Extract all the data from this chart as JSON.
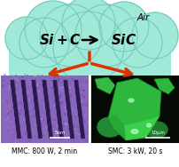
{
  "bg_color": "#ffffff",
  "cloud_color": "#a0e8d8",
  "cloud_edge_color": "#70c8b8",
  "air_text": "Air",
  "caption_left": "MMC: 800 W, 2 min",
  "caption_right": "SMC: 3 kW, 20 s",
  "scale_left": "5nm",
  "scale_right": "10μm",
  "arrow_color": "#dd3300",
  "left_bg": "#8866bb",
  "left_fin_dark": "#221144",
  "left_fin_light": "#9977cc",
  "right_bg": "#050a02",
  "right_crystal": "#33cc44",
  "right_dark": "#113322"
}
